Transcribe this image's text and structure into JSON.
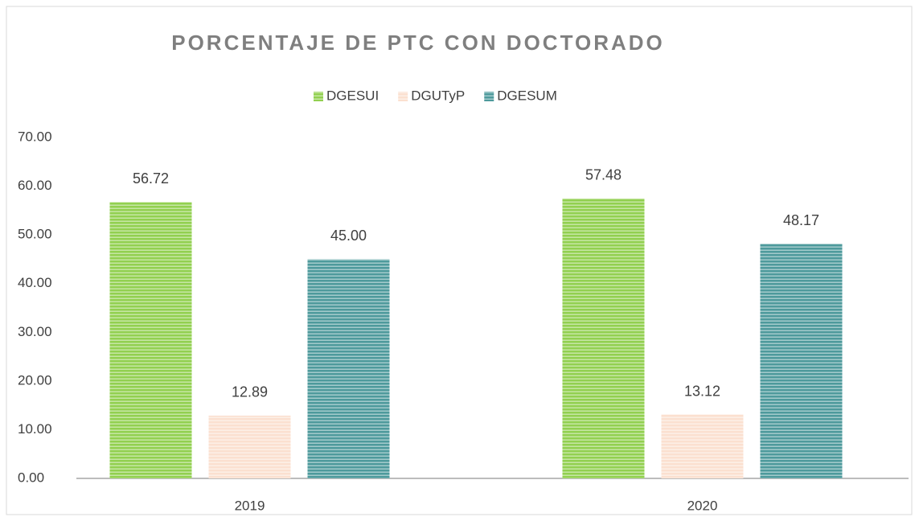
{
  "chart_data": {
    "type": "bar",
    "title": "PORCENTAJE DE PTC CON DOCTORADO",
    "categories": [
      "2019",
      "2020"
    ],
    "series": [
      {
        "name": "DGESUI",
        "color": "#92d050",
        "values": [
          56.72,
          57.48
        ],
        "value_labels": [
          "56.72",
          "57.48"
        ]
      },
      {
        "name": "DGUTyP",
        "color": "#fbe0d0",
        "values": [
          12.89,
          13.12
        ],
        "value_labels": [
          "12.89",
          "13.12"
        ]
      },
      {
        "name": "DGESUM",
        "color": "#4e9a9c",
        "values": [
          45,
          48.17
        ],
        "value_labels": [
          "45.00",
          "48.17"
        ]
      }
    ],
    "ylim": [
      0,
      70
    ],
    "yticks": [
      {
        "value": 0,
        "label": "0.00"
      },
      {
        "value": 10,
        "label": "10.00"
      },
      {
        "value": 20,
        "label": "20.00"
      },
      {
        "value": 30,
        "label": "30.00"
      },
      {
        "value": 40,
        "label": "40.00"
      },
      {
        "value": 50,
        "label": "50.00"
      },
      {
        "value": 60,
        "label": "60.00"
      },
      {
        "value": 70,
        "label": "70.00"
      }
    ],
    "grid": false,
    "legend": "top"
  }
}
